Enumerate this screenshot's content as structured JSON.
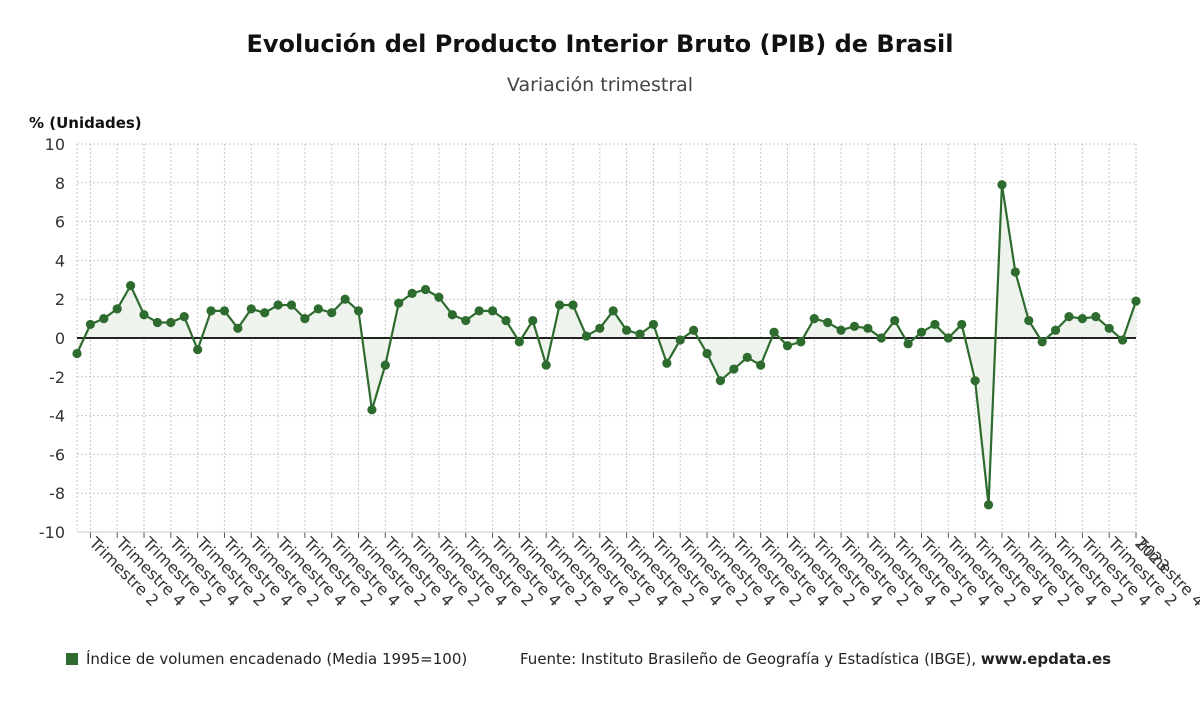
{
  "title": "Evolución del Producto Interior Bruto (PIB) de Brasil",
  "subtitle": "Variación trimestral",
  "unit_label": "% (Unidades)",
  "legend_label": "Índice de volumen encadenado (Media 1995=100)",
  "source_text": "Fuente: Instituto Brasileño de Geografía y Estadística (IBGE),",
  "source_site": "www.epdata.es",
  "colors": {
    "line": "#2e6b2e",
    "fill": "#eef3ee",
    "grid": "#c8c8c8",
    "zero": "#222222"
  },
  "chart_data": {
    "type": "line",
    "title": "Evolución del Producto Interior Bruto (PIB) de Brasil",
    "subtitle": "Variación trimestral",
    "ylabel": "% (Unidades)",
    "ylim": [
      -10,
      10
    ],
    "yticks": [
      10,
      8,
      6,
      4,
      2,
      0,
      -2,
      -4,
      -6,
      -8,
      -10
    ],
    "grid": true,
    "legend_position": "bottom-left",
    "x_tick_labels": [
      "Trimestre 2",
      "Trimestre 4",
      "Trimestre 2",
      "Trimestre 4",
      "Trimestre 2",
      "Trimestre 4",
      "Trimestre 2",
      "Trimestre 4",
      "Trimestre 2",
      "Trimestre 4",
      "Trimestre 2",
      "Trimestre 4",
      "Trimestre 2",
      "Trimestre 4",
      "Trimestre 2",
      "Trimestre 4",
      "Trimestre 2",
      "Trimestre 4",
      "Trimestre 2",
      "Trimestre 4",
      "Trimestre 2",
      "Trimestre 4",
      "Trimestre 2",
      "Trimestre 4",
      "Trimestre 2",
      "Trimestre 4",
      "Trimestre 2",
      "Trimestre 4",
      "Trimestre 2",
      "Trimestre 4",
      "Trimestre 2",
      "Trimestre 4",
      "Trimestre 2",
      "Trimestre 4",
      "Trimestre 2",
      "Trimestre 4",
      "Trimestre 2",
      "Trimestre 4",
      "Trimestre 2",
      "Trimestre 4",
      "2023"
    ],
    "series": [
      {
        "name": "Índice de volumen encadenado (Media 1995=100)",
        "values": [
          -0.8,
          0.7,
          1.0,
          1.5,
          2.7,
          1.2,
          0.8,
          0.8,
          1.1,
          -0.6,
          1.4,
          1.4,
          0.5,
          1.5,
          1.3,
          1.7,
          1.7,
          1.0,
          1.5,
          1.3,
          2.0,
          1.4,
          -3.7,
          -1.4,
          1.8,
          2.3,
          2.5,
          2.1,
          1.2,
          0.9,
          1.4,
          1.4,
          0.9,
          -0.2,
          0.9,
          -1.4,
          1.7,
          1.7,
          0.1,
          0.5,
          1.4,
          0.4,
          0.2,
          0.7,
          -1.3,
          -0.1,
          0.4,
          -0.8,
          -2.2,
          -1.6,
          -1.0,
          -1.4,
          0.3,
          -0.4,
          -0.2,
          1.0,
          0.8,
          0.4,
          0.6,
          0.5,
          0.0,
          0.9,
          -0.3,
          0.3,
          0.7,
          0.0,
          0.7,
          -2.2,
          -8.6,
          7.9,
          3.4,
          0.9,
          -0.2,
          0.4,
          1.1,
          1.0,
          1.1,
          0.5,
          -0.1,
          1.9
        ]
      }
    ]
  }
}
